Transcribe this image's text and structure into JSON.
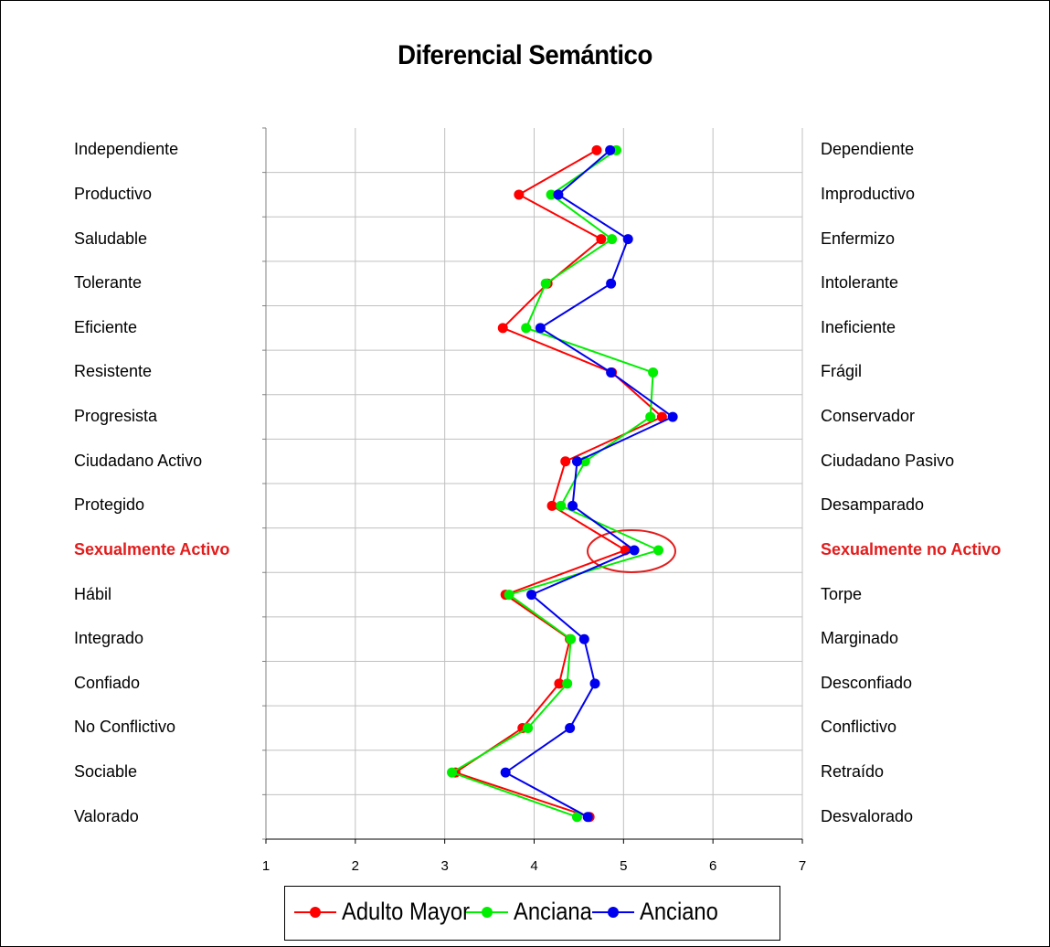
{
  "chart_data": {
    "type": "line",
    "title": "Diferencial Semántico",
    "orientation": "horizontal",
    "xlim": [
      1,
      7
    ],
    "x_ticks": [
      "1",
      "2",
      "3",
      "4",
      "5",
      "6",
      "7"
    ],
    "grid": true,
    "legend_position": "bottom",
    "left_labels": [
      "Independiente",
      "Productivo",
      "Saludable",
      "Tolerante",
      "Eficiente",
      "Resistente",
      "Progresista",
      "Ciudadano Activo",
      "Protegido",
      "Sexualmente Activo",
      "Hábil",
      "Integrado",
      "Confiado",
      "No Conflictivo",
      "Sociable",
      "Valorado"
    ],
    "right_labels": [
      "Dependiente",
      "Improductivo",
      "Enfermizo",
      "Intolerante",
      "Ineficiente",
      "Frágil",
      "Conservador",
      "Ciudadano Pasivo",
      "Desamparado",
      "Sexualmente no Activo",
      "Torpe",
      "Marginado",
      "Desconfiado",
      "Conflictivo",
      "Retraído",
      "Desvalorado"
    ],
    "highlight_index": 9,
    "highlight_color": "#e31c1c",
    "series": [
      {
        "name": "Adulto Mayor",
        "color": "#ff0000",
        "values": [
          4.7,
          3.83,
          4.75,
          4.15,
          3.65,
          4.87,
          5.43,
          4.35,
          4.2,
          5.02,
          3.68,
          4.4,
          4.28,
          3.87,
          3.12,
          4.62
        ]
      },
      {
        "name": "Anciana",
        "color": "#00ee00",
        "values": [
          4.92,
          4.19,
          4.87,
          4.13,
          3.91,
          5.33,
          5.3,
          4.57,
          4.3,
          5.39,
          3.72,
          4.41,
          4.37,
          3.93,
          3.08,
          4.48
        ]
      },
      {
        "name": "Anciano",
        "color": "#0000ee",
        "values": [
          4.85,
          4.27,
          5.05,
          4.86,
          4.07,
          4.86,
          5.55,
          4.48,
          4.43,
          5.12,
          3.97,
          4.56,
          4.68,
          4.4,
          3.68,
          4.6
        ]
      }
    ]
  }
}
